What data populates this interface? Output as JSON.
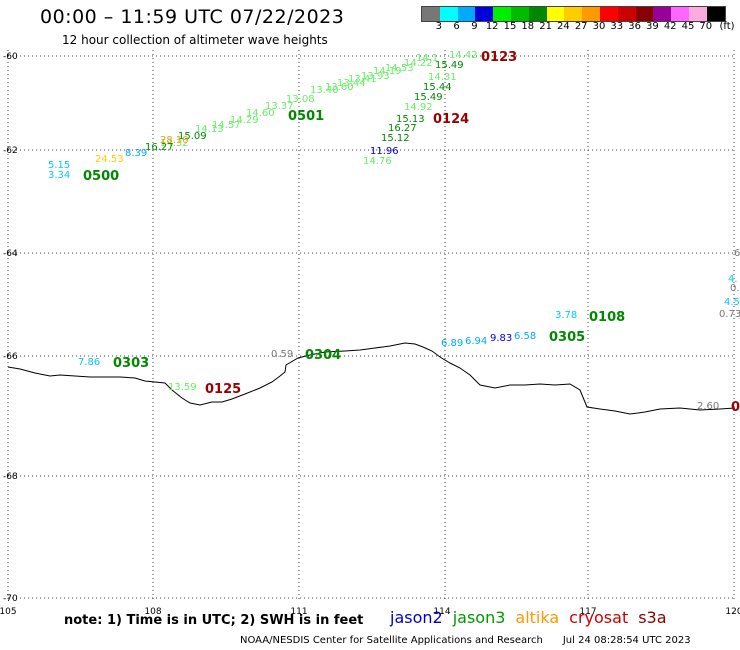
{
  "header": {
    "title": "00:00 – 11:59 UTC 07/22/2023",
    "subtitle": "12 hour collection of altimeter wave heights"
  },
  "scale": {
    "colors": [
      "#777777",
      "#00ffff",
      "#00aaff",
      "#0000dd",
      "#00ee00",
      "#00bb00",
      "#008800",
      "#ffff00",
      "#ffcc00",
      "#ff9900",
      "#ff0000",
      "#cc0000",
      "#880000",
      "#990099",
      "#ff66ff",
      "#ffaadd",
      "#000000"
    ],
    "labels": [
      "3",
      "6",
      "9",
      "12",
      "15",
      "18",
      "21",
      "24",
      "27",
      "30",
      "33",
      "36",
      "39",
      "42",
      "45",
      "70"
    ],
    "unit": "(ft)"
  },
  "axes": {
    "x_ticks": [
      "105",
      "108",
      "111",
      "114",
      "117",
      "120"
    ],
    "y_ticks": [
      "-60",
      "-62",
      "-64",
      "-66",
      "-68",
      "-70"
    ]
  },
  "tracks": [
    {
      "label": "0123",
      "color": "#990000"
    },
    {
      "label": "0124",
      "color": "#990000"
    },
    {
      "label": "0125",
      "color": "#990000"
    },
    {
      "label": "0500",
      "color": "#008800"
    },
    {
      "label": "0501",
      "color": "#008800"
    },
    {
      "label": "0303",
      "color": "#008800"
    },
    {
      "label": "0304",
      "color": "#008800"
    },
    {
      "label": "0305",
      "color": "#008800"
    },
    {
      "label": "0108",
      "color": "#008800"
    },
    {
      "label": "01",
      "color": "#990000"
    }
  ],
  "values": [
    {
      "t": "14.42",
      "color": "#66ee66"
    },
    {
      "t": "14.1",
      "color": "#66ee66"
    },
    {
      "t": "15.49",
      "color": "#008800"
    },
    {
      "t": "14.22",
      "color": "#66ee66"
    },
    {
      "t": "14.53",
      "color": "#66ee66"
    },
    {
      "t": "14.19",
      "color": "#66ee66"
    },
    {
      "t": "14.31",
      "color": "#66ee66"
    },
    {
      "t": "13.93",
      "color": "#66ee66"
    },
    {
      "t": "13.41",
      "color": "#66ee66"
    },
    {
      "t": "13.44",
      "color": "#66ee66"
    },
    {
      "t": "13.60",
      "color": "#66ee66"
    },
    {
      "t": "13.40",
      "color": "#66ee66"
    },
    {
      "t": "13.08",
      "color": "#66ee66"
    },
    {
      "t": "13.37",
      "color": "#66ee66"
    },
    {
      "t": "14.60",
      "color": "#66ee66"
    },
    {
      "t": "14.29",
      "color": "#66ee66"
    },
    {
      "t": "14.57",
      "color": "#66ee66"
    },
    {
      "t": "14.13",
      "color": "#66ee66"
    },
    {
      "t": "15.09",
      "color": "#008800"
    },
    {
      "t": "14.32",
      "color": "#66ee66"
    },
    {
      "t": "16.27",
      "color": "#008800"
    },
    {
      "t": "28.10",
      "color": "#ff9900"
    },
    {
      "t": "8.39",
      "color": "#00aaff"
    },
    {
      "t": "24.53",
      "color": "#ffcc00"
    },
    {
      "t": "5.15",
      "color": "#00ccff"
    },
    {
      "t": "3.34",
      "color": "#00ccff"
    },
    {
      "t": "15.44",
      "color": "#008800"
    },
    {
      "t": "15.49",
      "color": "#008800"
    },
    {
      "t": "14.92",
      "color": "#66ee66"
    },
    {
      "t": "15.13",
      "color": "#008800"
    },
    {
      "t": "16.27",
      "color": "#008800"
    },
    {
      "t": "15.12",
      "color": "#008800"
    },
    {
      "t": "11.96",
      "color": "#0000dd"
    },
    {
      "t": "14.76",
      "color": "#66ee66"
    },
    {
      "t": "7.86",
      "color": "#00ccff"
    },
    {
      "t": "13.59",
      "color": "#66ee66"
    },
    {
      "t": "0.59",
      "color": "#777777"
    },
    {
      "t": "6.89",
      "color": "#00aaff"
    },
    {
      "t": "6.94",
      "color": "#00aaff"
    },
    {
      "t": "9.83",
      "color": "#0000dd"
    },
    {
      "t": "6.58",
      "color": "#00aaff"
    },
    {
      "t": "3.78",
      "color": "#00ccff"
    },
    {
      "t": "2.60",
      "color": "#777777"
    },
    {
      "t": "6",
      "color": "#777777"
    },
    {
      "t": "4.",
      "color": "#00ccff"
    },
    {
      "t": "0.",
      "color": "#777777"
    },
    {
      "t": "4.5",
      "color": "#00ccff"
    },
    {
      "t": "0.73",
      "color": "#777777"
    }
  ],
  "legend_note": "note: 1) Time is in UTC; 2) SWH is in feet",
  "satellites": [
    {
      "name": "jason2",
      "color": "#0000cc"
    },
    {
      "name": "jason3",
      "color": "#009900"
    },
    {
      "name": "altika",
      "color": "#ff9900"
    },
    {
      "name": "cryosat",
      "color": "#cc0000"
    },
    {
      "name": "s3a",
      "color": "#880000"
    }
  ],
  "credit": "NOAA/NESDIS Center for Satellite Applications and Research",
  "credit_date": "Jul 24 08:28:54 UTC 2023"
}
